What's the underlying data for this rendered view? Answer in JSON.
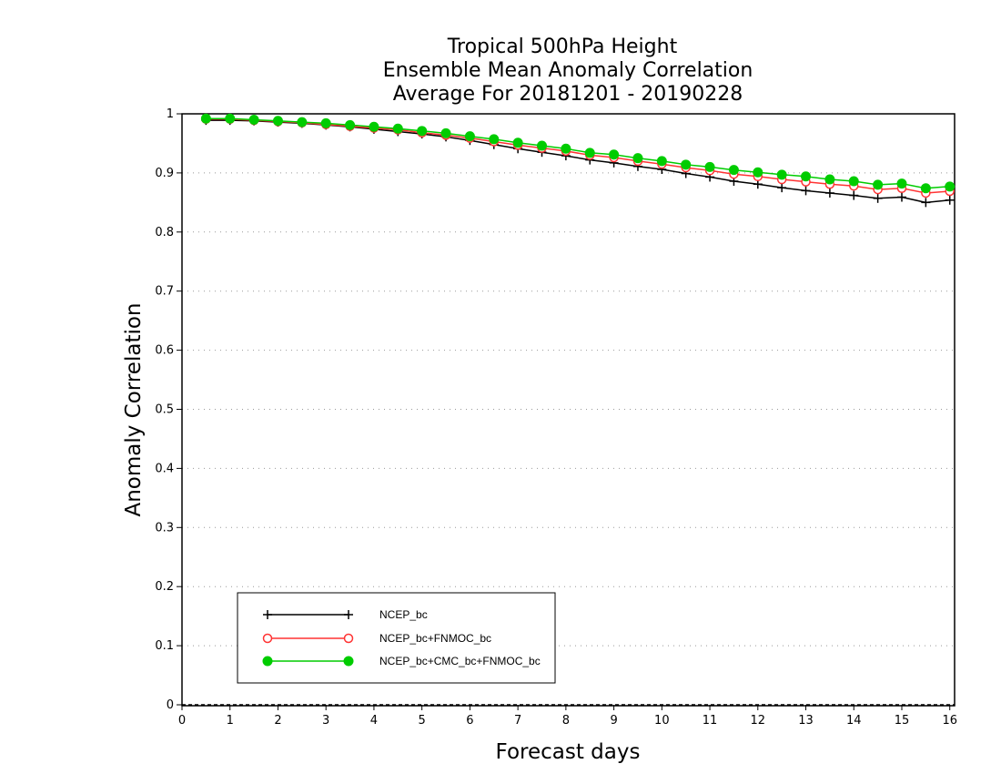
{
  "chart_data": {
    "type": "line",
    "title_lines": [
      "Tropical 500hPa Height",
      "Ensemble Mean Anomaly Correlation",
      "Average For 20181201 - 20190228"
    ],
    "xlabel": "Forecast days",
    "ylabel": "Anomaly Correlation",
    "xlim": [
      0,
      16.1
    ],
    "ylim": [
      0,
      1
    ],
    "x_ticks": [
      "0",
      "1",
      "2",
      "3",
      "4",
      "5",
      "6",
      "7",
      "8",
      "9",
      "10",
      "11",
      "12",
      "13",
      "14",
      "15",
      "16"
    ],
    "y_ticks": [
      "0",
      "0.1",
      "0.2",
      "0.3",
      "0.4",
      "0.5",
      "0.6",
      "0.7",
      "0.8",
      "0.9",
      "1"
    ],
    "grid": "horizontal dotted",
    "legend_position": "bottom-left",
    "x": [
      0.5,
      1,
      1.5,
      2,
      2.5,
      3,
      3.5,
      4,
      4.5,
      5,
      5.5,
      6,
      6.5,
      7,
      7.5,
      8,
      8.5,
      9,
      9.5,
      10,
      10.5,
      11,
      11.5,
      12,
      12.5,
      13,
      13.5,
      14,
      14.5,
      15,
      15.5,
      16
    ],
    "series": [
      {
        "name": "NCEP_bc",
        "color": "#000000",
        "marker": "plus",
        "values": [
          0.989,
          0.989,
          0.988,
          0.986,
          0.984,
          0.981,
          0.978,
          0.974,
          0.97,
          0.966,
          0.961,
          0.955,
          0.948,
          0.941,
          0.935,
          0.929,
          0.922,
          0.917,
          0.911,
          0.906,
          0.899,
          0.893,
          0.886,
          0.881,
          0.875,
          0.87,
          0.866,
          0.862,
          0.857,
          0.859,
          0.85,
          0.854
        ]
      },
      {
        "name": "NCEP_bc+FNMOC_bc",
        "color": "#ff3333",
        "marker": "open-circle",
        "values": [
          0.991,
          0.991,
          0.989,
          0.987,
          0.985,
          0.982,
          0.979,
          0.976,
          0.973,
          0.968,
          0.964,
          0.959,
          0.953,
          0.947,
          0.942,
          0.937,
          0.93,
          0.926,
          0.92,
          0.915,
          0.909,
          0.904,
          0.898,
          0.894,
          0.889,
          0.885,
          0.881,
          0.878,
          0.872,
          0.874,
          0.866,
          0.869
        ]
      },
      {
        "name": "NCEP_bc+CMC_bc+FNMOC_bc",
        "color": "#00cc00",
        "marker": "filled-circle",
        "values": [
          0.992,
          0.992,
          0.99,
          0.988,
          0.986,
          0.984,
          0.981,
          0.978,
          0.975,
          0.971,
          0.967,
          0.962,
          0.957,
          0.951,
          0.946,
          0.941,
          0.934,
          0.931,
          0.925,
          0.92,
          0.914,
          0.91,
          0.905,
          0.901,
          0.897,
          0.894,
          0.889,
          0.886,
          0.88,
          0.882,
          0.874,
          0.877
        ]
      }
    ]
  }
}
